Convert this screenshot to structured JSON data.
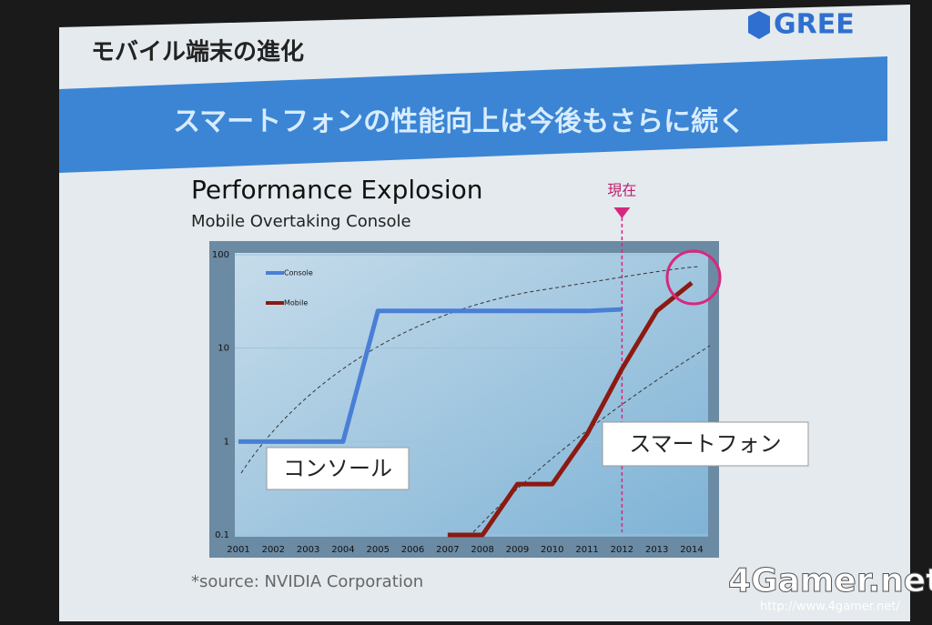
{
  "slide": {
    "logo": "GREE",
    "heading": "モバイル端末の進化",
    "banner": "スマートフォンの性能向上は今後もさらに続く",
    "source": "*source: NVIDIA Corporation",
    "watermark": "4Gamer.net",
    "watermark_url": "http://www.4gamer.net/"
  },
  "chart_data": {
    "type": "line",
    "title": "Performance Explosion",
    "subtitle": "Mobile Overtaking Console",
    "categories": [
      "2001",
      "2002",
      "2003",
      "2004",
      "2005",
      "2006",
      "2007",
      "2008",
      "2009",
      "2010",
      "2011",
      "2012",
      "2013",
      "2014"
    ],
    "series": [
      {
        "name": "Console",
        "color": "#4a7fd6",
        "values": [
          1,
          1,
          1,
          1,
          25,
          25,
          25,
          25,
          25,
          25,
          25,
          26,
          null,
          null
        ]
      },
      {
        "name": "Mobile",
        "color": "#8b1a12",
        "values": [
          null,
          null,
          null,
          null,
          null,
          null,
          0.1,
          0.1,
          0.35,
          0.35,
          1.2,
          6,
          25,
          50
        ]
      }
    ],
    "ylim": [
      0.1,
      100
    ],
    "yticks": [
      0.1,
      1,
      10,
      100
    ],
    "log_y": true,
    "grid": true,
    "legend": "upper left",
    "annotations": [
      "コンソール",
      "スマートフォン",
      "現在"
    ]
  }
}
